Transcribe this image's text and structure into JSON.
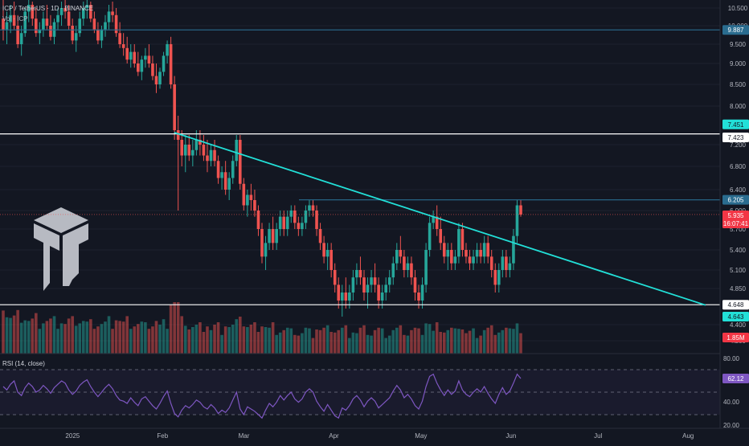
{
  "header": {
    "symbol_line": "ICP / TetherUS · 1D · BINANCE",
    "volume_line": "Vol · ICP"
  },
  "rsi_panel": {
    "label": "RSI (14, close)",
    "current_value": "62.12",
    "axis_ticks": [
      "80.00",
      "40.00",
      "20.00"
    ]
  },
  "price_axis": {
    "ticks": [
      "10.500",
      "10.000",
      "9.500",
      "9.000",
      "8.500",
      "8.000",
      "7.200",
      "6.800",
      "6.400",
      "6.000",
      "5.700",
      "5.400",
      "5.100",
      "4.850",
      "4.400",
      "4.200"
    ],
    "badges": [
      {
        "key": "line_9887",
        "text": "9.887",
        "bg": "#2a6c8f",
        "fg": "#ffffff"
      },
      {
        "key": "line_7451",
        "text": "7.451",
        "bg": "#22e0d8",
        "fg": "#131722"
      },
      {
        "key": "line_7423",
        "text": "7.423",
        "bg": "#ffffff",
        "fg": "#131722"
      },
      {
        "key": "line_6205",
        "text": "6.205",
        "bg": "#2a6c8f",
        "fg": "#ffffff"
      },
      {
        "key": "last_price",
        "text": "5.935",
        "bg": "#f23645",
        "fg": "#ffffff"
      },
      {
        "key": "countdown",
        "text": "16:07:41",
        "bg": "#f23645",
        "fg": "#ffffff"
      },
      {
        "key": "line_4648",
        "text": "4.648",
        "bg": "#ffffff",
        "fg": "#131722"
      },
      {
        "key": "line_4643",
        "text": "4.643",
        "bg": "#22e0d8",
        "fg": "#131722"
      },
      {
        "key": "volume",
        "text": "1.85M",
        "bg": "#f23645",
        "fg": "#ffffff"
      }
    ]
  },
  "time_axis": {
    "labels": [
      "2025",
      "Feb",
      "Mar",
      "Apr",
      "May",
      "Jun",
      "Jul",
      "Aug"
    ]
  },
  "chart_data": {
    "type": "candlestick",
    "timeframe": "1D",
    "x_range": [
      "2024-12-07",
      "2025-08-12"
    ],
    "y_range": [
      4.2,
      10.7
    ],
    "candles_ohlc": [
      [
        10.2,
        10.8,
        9.6,
        9.9
      ],
      [
        9.9,
        10.4,
        9.5,
        10.1
      ],
      [
        10.1,
        10.6,
        9.8,
        10.3
      ],
      [
        10.3,
        10.7,
        9.9,
        10.0
      ],
      [
        10.0,
        10.3,
        9.4,
        9.5
      ],
      [
        9.5,
        10.0,
        9.2,
        9.8
      ],
      [
        9.8,
        10.5,
        9.7,
        10.4
      ],
      [
        10.4,
        10.8,
        10.1,
        10.6
      ],
      [
        10.6,
        10.7,
        10.0,
        10.2
      ],
      [
        10.2,
        10.5,
        9.7,
        9.8
      ],
      [
        9.8,
        10.1,
        9.5,
        9.9
      ],
      [
        9.9,
        10.4,
        9.7,
        10.2
      ],
      [
        10.2,
        10.6,
        9.9,
        10.0
      ],
      [
        10.0,
        10.3,
        9.6,
        9.7
      ],
      [
        9.7,
        10.2,
        9.5,
        10.1
      ],
      [
        10.1,
        10.5,
        9.9,
        10.3
      ],
      [
        10.3,
        10.7,
        10.0,
        10.5
      ],
      [
        10.5,
        10.8,
        10.2,
        10.4
      ],
      [
        10.4,
        10.6,
        9.9,
        10.0
      ],
      [
        10.0,
        10.2,
        9.5,
        9.6
      ],
      [
        9.6,
        10.0,
        9.3,
        9.8
      ],
      [
        9.8,
        10.4,
        9.7,
        10.2
      ],
      [
        10.2,
        10.7,
        10.0,
        10.5
      ],
      [
        10.5,
        10.8,
        10.2,
        10.6
      ],
      [
        10.6,
        10.7,
        10.1,
        10.2
      ],
      [
        10.2,
        10.4,
        9.8,
        9.9
      ],
      [
        9.9,
        10.1,
        9.5,
        9.6
      ],
      [
        9.6,
        10.0,
        9.4,
        9.9
      ],
      [
        9.9,
        10.3,
        9.7,
        10.1
      ],
      [
        10.1,
        10.6,
        9.9,
        10.4
      ],
      [
        10.4,
        10.7,
        10.1,
        10.3
      ],
      [
        10.3,
        10.5,
        9.7,
        9.8
      ],
      [
        9.8,
        10.1,
        9.4,
        9.5
      ],
      [
        9.5,
        9.8,
        9.2,
        9.4
      ],
      [
        9.4,
        9.7,
        9.0,
        9.1
      ],
      [
        9.1,
        9.5,
        8.9,
        9.3
      ],
      [
        9.3,
        9.5,
        8.9,
        9.0
      ],
      [
        9.0,
        9.3,
        8.7,
        8.8
      ],
      [
        8.8,
        9.2,
        8.6,
        9.1
      ],
      [
        9.1,
        9.4,
        8.9,
        9.2
      ],
      [
        9.2,
        9.5,
        8.9,
        9.0
      ],
      [
        9.0,
        9.2,
        8.6,
        8.7
      ],
      [
        8.7,
        9.0,
        8.3,
        8.5
      ],
      [
        8.5,
        8.9,
        8.4,
        8.8
      ],
      [
        8.8,
        9.3,
        8.7,
        9.2
      ],
      [
        9.2,
        9.6,
        9.0,
        9.5
      ],
      [
        9.5,
        9.7,
        8.4,
        8.5
      ],
      [
        8.5,
        8.7,
        7.3,
        7.5
      ],
      [
        7.5,
        7.8,
        6.0,
        7.3
      ],
      [
        7.3,
        7.5,
        6.8,
        7.0
      ],
      [
        7.0,
        7.4,
        6.7,
        7.2
      ],
      [
        7.2,
        7.4,
        6.9,
        7.0
      ],
      [
        7.0,
        7.3,
        6.8,
        7.1
      ],
      [
        7.1,
        7.5,
        7.0,
        7.3
      ],
      [
        7.3,
        7.5,
        7.0,
        7.2
      ],
      [
        7.2,
        7.4,
        6.9,
        7.0
      ],
      [
        7.0,
        7.3,
        6.7,
        6.9
      ],
      [
        6.9,
        7.2,
        6.8,
        7.1
      ],
      [
        7.1,
        7.3,
        6.8,
        6.9
      ],
      [
        6.9,
        7.0,
        6.5,
        6.6
      ],
      [
        6.6,
        6.8,
        6.4,
        6.7
      ],
      [
        6.7,
        6.9,
        6.3,
        6.4
      ],
      [
        6.4,
        6.7,
        6.2,
        6.6
      ],
      [
        6.6,
        7.0,
        6.5,
        6.9
      ],
      [
        6.9,
        7.4,
        6.8,
        7.3
      ],
      [
        7.3,
        7.4,
        6.4,
        6.5
      ],
      [
        6.5,
        6.6,
        6.0,
        6.1
      ],
      [
        6.1,
        6.4,
        5.9,
        6.3
      ],
      [
        6.3,
        6.5,
        6.0,
        6.2
      ],
      [
        6.2,
        6.4,
        5.9,
        6.0
      ],
      [
        6.0,
        6.1,
        5.6,
        5.7
      ],
      [
        5.7,
        5.8,
        5.2,
        5.3
      ],
      [
        5.3,
        5.6,
        5.1,
        5.5
      ],
      [
        5.5,
        5.8,
        5.4,
        5.7
      ],
      [
        5.7,
        5.9,
        5.4,
        5.5
      ],
      [
        5.5,
        5.8,
        5.4,
        5.7
      ],
      [
        5.7,
        6.0,
        5.6,
        5.9
      ],
      [
        5.9,
        6.0,
        5.6,
        5.7
      ],
      [
        5.7,
        6.0,
        5.6,
        5.9
      ],
      [
        5.9,
        6.1,
        5.8,
        6.0
      ],
      [
        6.0,
        6.1,
        5.7,
        5.8
      ],
      [
        5.8,
        5.9,
        5.6,
        5.7
      ],
      [
        5.7,
        5.9,
        5.6,
        5.8
      ],
      [
        5.8,
        6.1,
        5.7,
        6.0
      ],
      [
        6.0,
        6.2,
        5.9,
        6.1
      ],
      [
        6.1,
        6.2,
        5.9,
        6.0
      ],
      [
        6.0,
        6.1,
        5.6,
        5.7
      ],
      [
        5.7,
        5.8,
        5.4,
        5.5
      ],
      [
        5.5,
        5.6,
        5.2,
        5.3
      ],
      [
        5.3,
        5.5,
        5.1,
        5.4
      ],
      [
        5.4,
        5.5,
        5.0,
        5.1
      ],
      [
        5.1,
        5.2,
        4.8,
        4.9
      ],
      [
        4.9,
        5.0,
        4.6,
        4.7
      ],
      [
        4.7,
        4.9,
        4.5,
        4.8
      ],
      [
        4.8,
        5.0,
        4.6,
        4.7
      ],
      [
        4.7,
        4.9,
        4.6,
        4.8
      ],
      [
        4.8,
        5.1,
        4.7,
        5.0
      ],
      [
        5.0,
        5.2,
        4.9,
        5.1
      ],
      [
        5.1,
        5.3,
        4.9,
        5.0
      ],
      [
        5.0,
        5.1,
        4.7,
        4.8
      ],
      [
        4.8,
        5.0,
        4.6,
        4.9
      ],
      [
        4.9,
        5.1,
        4.8,
        5.0
      ],
      [
        5.0,
        5.2,
        4.8,
        4.9
      ],
      [
        4.9,
        5.0,
        4.6,
        4.7
      ],
      [
        4.7,
        4.9,
        4.6,
        4.8
      ],
      [
        4.8,
        5.0,
        4.7,
        4.9
      ],
      [
        4.9,
        5.1,
        4.8,
        5.0
      ],
      [
        5.0,
        5.3,
        4.9,
        5.2
      ],
      [
        5.2,
        5.5,
        5.1,
        5.4
      ],
      [
        5.4,
        5.6,
        5.2,
        5.3
      ],
      [
        5.3,
        5.4,
        5.0,
        5.1
      ],
      [
        5.1,
        5.3,
        5.0,
        5.2
      ],
      [
        5.2,
        5.3,
        4.9,
        5.0
      ],
      [
        5.0,
        5.1,
        4.7,
        4.8
      ],
      [
        4.8,
        4.9,
        4.6,
        4.7
      ],
      [
        4.7,
        5.0,
        4.6,
        4.9
      ],
      [
        4.9,
        5.5,
        4.8,
        5.4
      ],
      [
        5.4,
        5.9,
        5.3,
        5.8
      ],
      [
        5.8,
        6.0,
        5.7,
        5.9
      ],
      [
        5.9,
        6.1,
        5.6,
        5.7
      ],
      [
        5.7,
        5.9,
        5.4,
        5.5
      ],
      [
        5.5,
        5.6,
        5.2,
        5.3
      ],
      [
        5.3,
        5.5,
        5.1,
        5.4
      ],
      [
        5.4,
        5.5,
        5.1,
        5.2
      ],
      [
        5.2,
        5.4,
        5.1,
        5.3
      ],
      [
        5.3,
        5.8,
        5.2,
        5.7
      ],
      [
        5.7,
        5.8,
        5.3,
        5.4
      ],
      [
        5.4,
        5.5,
        5.2,
        5.3
      ],
      [
        5.3,
        5.4,
        5.1,
        5.2
      ],
      [
        5.2,
        5.4,
        5.1,
        5.3
      ],
      [
        5.3,
        5.5,
        5.2,
        5.4
      ],
      [
        5.4,
        5.5,
        5.2,
        5.3
      ],
      [
        5.3,
        5.6,
        5.2,
        5.5
      ],
      [
        5.5,
        5.6,
        5.2,
        5.3
      ],
      [
        5.3,
        5.4,
        5.0,
        5.1
      ],
      [
        5.1,
        5.2,
        4.8,
        4.9
      ],
      [
        4.9,
        5.2,
        4.8,
        5.1
      ],
      [
        5.1,
        5.4,
        5.0,
        5.3
      ],
      [
        5.3,
        5.4,
        5.0,
        5.1
      ],
      [
        5.1,
        5.3,
        5.0,
        5.2
      ],
      [
        5.2,
        5.7,
        5.1,
        5.6
      ],
      [
        5.6,
        6.2,
        5.5,
        6.1
      ],
      [
        6.1,
        6.2,
        5.9,
        5.935
      ]
    ],
    "horizontal_levels": [
      9.887,
      7.423,
      6.205,
      4.648
    ],
    "current_price_line": 5.935,
    "trendline": {
      "from": [
        "2025-02-05",
        7.451
      ],
      "to": [
        "2025-08-07",
        4.643
      ]
    },
    "rsi": {
      "name": "RSI (14, close)",
      "bands": [
        70,
        50,
        30
      ],
      "y_range": [
        20,
        80
      ],
      "values": [
        55,
        52,
        57,
        60,
        50,
        47,
        54,
        58,
        55,
        50,
        52,
        56,
        53,
        49,
        54,
        57,
        60,
        58,
        52,
        48,
        51,
        56,
        59,
        61,
        55,
        50,
        46,
        50,
        54,
        57,
        53,
        47,
        43,
        42,
        40,
        45,
        41,
        38,
        44,
        46,
        42,
        38,
        35,
        40,
        46,
        51,
        40,
        31,
        28,
        34,
        38,
        36,
        39,
        43,
        41,
        37,
        35,
        39,
        36,
        31,
        34,
        32,
        36,
        43,
        50,
        35,
        30,
        37,
        35,
        33,
        30,
        27,
        34,
        40,
        37,
        41,
        47,
        43,
        47,
        50,
        44,
        41,
        44,
        50,
        53,
        50,
        42,
        37,
        33,
        39,
        34,
        29,
        27,
        36,
        34,
        38,
        44,
        47,
        43,
        37,
        42,
        45,
        42,
        36,
        39,
        42,
        45,
        51,
        56,
        52,
        45,
        48,
        44,
        38,
        35,
        42,
        55,
        64,
        66,
        58,
        52,
        47,
        52,
        48,
        51,
        60,
        52,
        48,
        46,
        50,
        53,
        50,
        55,
        49,
        44,
        40,
        48,
        54,
        48,
        51,
        58,
        66,
        62.12
      ]
    },
    "volume_units": "M",
    "volume_last": 1.85
  },
  "colors": {
    "background": "#131722",
    "up": "#26a69a",
    "down": "#ef5350",
    "white_level": "#ffffff",
    "blue_level": "#2a6c8f",
    "trendline": "#22e0d8",
    "rsi_line": "#7e57c2",
    "grid": "#1e222d",
    "axis_text": "#b2b5be"
  },
  "logo": {
    "icon": "tc-shield-logo"
  }
}
